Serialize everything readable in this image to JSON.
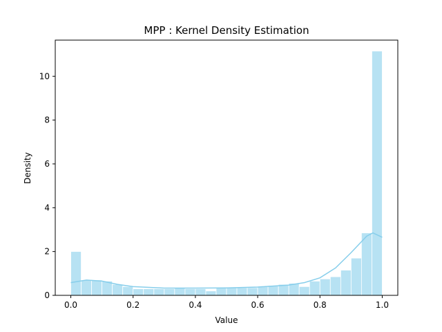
{
  "chart_data": {
    "type": "histogram",
    "title": "MPP : Kernel Density Estimation",
    "x_label": "Value",
    "y_label": "Density",
    "color": "#87ceeb",
    "bins": [
      0,
      0.0333,
      0.0667,
      0.1,
      0.1333,
      0.1667,
      0.2,
      0.2333,
      0.2667,
      0.3,
      0.3333,
      0.3667,
      0.4,
      0.4333,
      0.4667,
      0.5,
      0.5333,
      0.5667,
      0.6,
      0.6333,
      0.6667,
      0.7,
      0.7333,
      0.7667,
      0.8,
      0.8333,
      0.8667,
      0.9,
      0.9333,
      0.9667,
      1.0
    ],
    "values": [
      2.0,
      0.7,
      0.7,
      0.65,
      0.5,
      0.4,
      0.3,
      0.3,
      0.3,
      0.3,
      0.35,
      0.3,
      0.3,
      0.2,
      0.35,
      0.35,
      0.35,
      0.35,
      0.4,
      0.45,
      0.5,
      0.55,
      0.4,
      0.65,
      0.75,
      0.85,
      1.15,
      1.7,
      2.85,
      11.15
    ],
    "kde": {
      "x": [
        0,
        0.05,
        0.1,
        0.15,
        0.2,
        0.3,
        0.4,
        0.5,
        0.6,
        0.7,
        0.75,
        0.8,
        0.85,
        0.9,
        0.95,
        0.97,
        1.0
      ],
      "values": [
        0.58,
        0.7,
        0.65,
        0.5,
        0.4,
        0.33,
        0.33,
        0.34,
        0.38,
        0.47,
        0.58,
        0.8,
        1.25,
        1.95,
        2.7,
        2.85,
        2.65
      ]
    },
    "xlim": [
      -0.05,
      1.05
    ],
    "ylim": [
      0,
      11.65
    ],
    "xticks": [
      {
        "value": 0,
        "label": "0.0"
      },
      {
        "value": 0.2,
        "label": "0.2"
      },
      {
        "value": 0.4,
        "label": "0.4"
      },
      {
        "value": 0.6,
        "label": "0.6"
      },
      {
        "value": 0.8,
        "label": "0.8"
      },
      {
        "value": 1,
        "label": "1.0"
      }
    ],
    "yticks": [
      0,
      2,
      4,
      6,
      8,
      10
    ],
    "grid": false
  }
}
